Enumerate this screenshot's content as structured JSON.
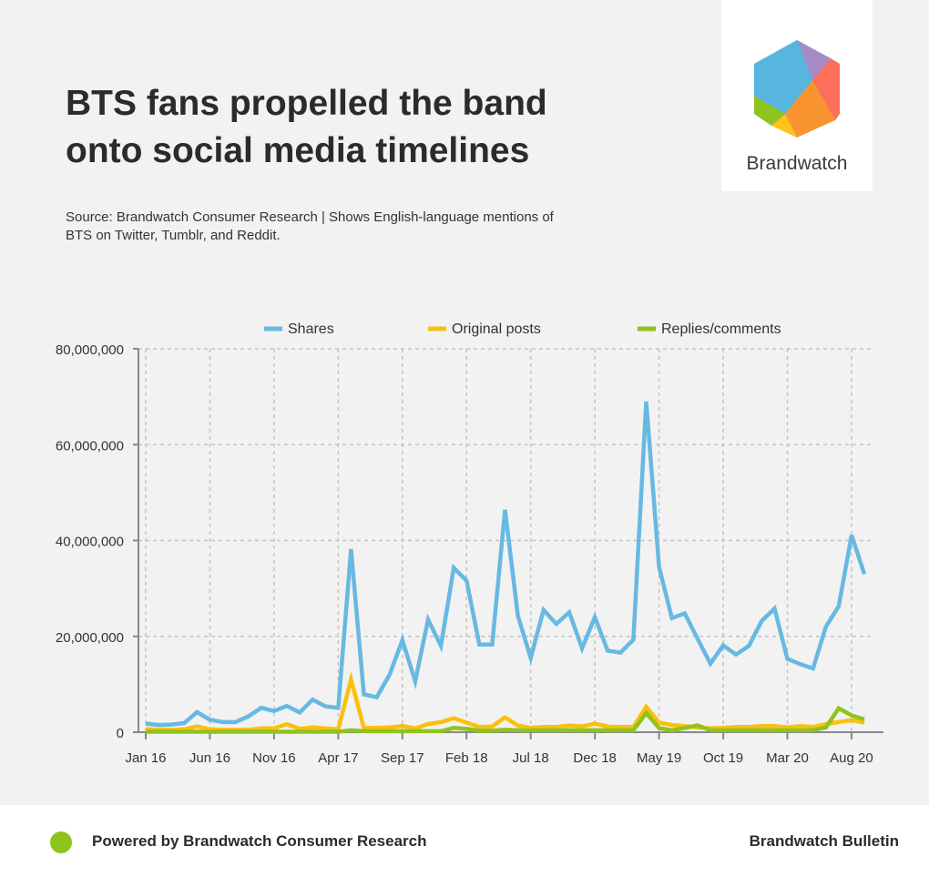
{
  "header": {
    "title": "BTS fans propelled the band onto social media timelines",
    "subtitle": "Source: Brandwatch Consumer Research | Shows English-language mentions of BTS on Twitter, Tumblr, and Reddit."
  },
  "logo": {
    "text": "Brandwatch"
  },
  "footer": {
    "left": "Powered by Brandwatch Consumer Research",
    "right": "Brandwatch Bulletin",
    "dot_color": "#8fc31f"
  },
  "chart_data": {
    "type": "line",
    "title": "",
    "xlabel": "",
    "ylabel": "",
    "x_start": "Jan 16",
    "x_end": "Sep 20",
    "x_interval": "month",
    "x_tick_labels": [
      "Jan 16",
      "Jun 16",
      "Nov 16",
      "Apr 17",
      "Sep 17",
      "Feb 18",
      "Jul 18",
      "Dec 18",
      "May 19",
      "Oct 19",
      "Mar 20",
      "Aug 20"
    ],
    "y_tick_labels": [
      "0",
      "20,000,000",
      "40,000,000",
      "60,000,000",
      "80,000,000"
    ],
    "ylim": [
      0,
      80000000
    ],
    "grid": true,
    "legend_position": "top",
    "series": [
      {
        "name": "Shares",
        "color": "#67b9e2",
        "values_millions": [
          1.8,
          1.5,
          1.6,
          1.9,
          4.2,
          2.6,
          2.1,
          2.1,
          3.3,
          5.1,
          4.4,
          5.5,
          4.1,
          6.8,
          5.4,
          5.1,
          38.2,
          7.9,
          7.3,
          12,
          19.2,
          10.6,
          23.5,
          18,
          34.3,
          31.6,
          18.3,
          18.3,
          46.4,
          24.3,
          15.5,
          25.5,
          22.6,
          25,
          17.5,
          24,
          17,
          16.6,
          19.3,
          69,
          34.5,
          23.8,
          24.8,
          19.5,
          14.3,
          18.1,
          16.2,
          18,
          23.2,
          25.8,
          15.3,
          14.2,
          13.3,
          22,
          26.3,
          41.1,
          33
        ]
      },
      {
        "name": "Original posts",
        "color": "#fbc00e",
        "values_millions": [
          0.6,
          0.5,
          0.5,
          0.6,
          1.2,
          0.6,
          0.5,
          0.5,
          0.5,
          0.8,
          0.8,
          1.7,
          0.7,
          1.0,
          0.8,
          0.6,
          11,
          0.9,
          0.9,
          1.0,
          1.3,
          0.8,
          1.7,
          2.1,
          2.9,
          2.0,
          1.1,
          1.2,
          3.1,
          1.4,
          0.9,
          1.1,
          1.1,
          1.4,
          1.2,
          1.8,
          1.2,
          1.1,
          1.1,
          5.3,
          2.0,
          1.5,
          1.3,
          1.0,
          0.8,
          0.9,
          1.1,
          1.1,
          1.3,
          1.3,
          1.0,
          1.3,
          1.1,
          1.7,
          2.1,
          2.5,
          2.0
        ]
      },
      {
        "name": "Replies/comments",
        "color": "#8fc31f",
        "values_millions": [
          0.1,
          0.1,
          0.1,
          0.1,
          0.1,
          0.1,
          0.1,
          0.1,
          0.1,
          0.1,
          0.1,
          0.1,
          0.1,
          0.1,
          0.1,
          0.1,
          0.4,
          0.2,
          0.2,
          0.2,
          0.2,
          0.2,
          0.2,
          0.2,
          0.9,
          0.7,
          0.3,
          0.3,
          0.5,
          0.4,
          0.4,
          0.4,
          0.4,
          0.4,
          0.4,
          0.4,
          0.4,
          0.4,
          0.4,
          4.0,
          0.9,
          0.4,
          0.9,
          1.4,
          0.4,
          0.4,
          0.4,
          0.4,
          0.4,
          0.4,
          0.4,
          0.4,
          0.4,
          1.0,
          5.0,
          3.5,
          2.7
        ]
      }
    ]
  }
}
